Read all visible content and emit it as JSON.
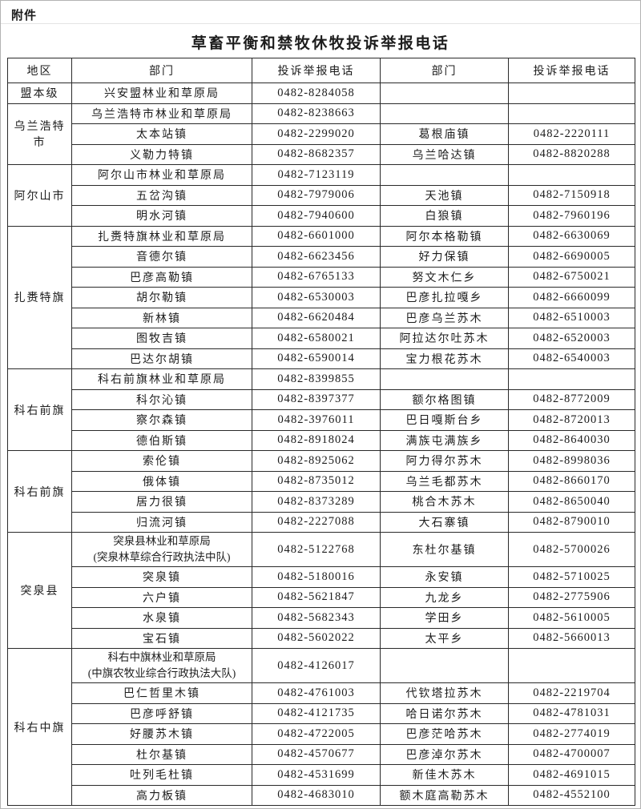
{
  "attachment_label": "附件",
  "title": "草畜平衡和禁牧休牧投诉举报电话",
  "colors": {
    "text": "#1c1c1c",
    "table_border": "#2a2a2a",
    "page_background": "#ffffff"
  },
  "table": {
    "columns": [
      "地区",
      "部门",
      "投诉举报电话",
      "部门",
      "投诉举报电话"
    ],
    "sections": [
      {
        "region": "盟本级",
        "rows": [
          [
            "兴安盟林业和草原局",
            "0482-8284058",
            "",
            ""
          ]
        ]
      },
      {
        "region": "乌兰浩特市",
        "rows": [
          [
            "乌兰浩特市林业和草原局",
            "0482-8238663",
            "",
            ""
          ],
          [
            "太本站镇",
            "0482-2299020",
            "葛根庙镇",
            "0482-2220111"
          ],
          [
            "义勒力特镇",
            "0482-8682357",
            "乌兰哈达镇",
            "0482-8820288"
          ]
        ]
      },
      {
        "region": "阿尔山市",
        "rows": [
          [
            "阿尔山市林业和草原局",
            "0482-7123119",
            "",
            ""
          ],
          [
            "五岔沟镇",
            "0482-7979006",
            "天池镇",
            "0482-7150918"
          ],
          [
            "明水河镇",
            "0482-7940600",
            "白狼镇",
            "0482-7960196"
          ]
        ]
      },
      {
        "region": "扎赉特旗",
        "rows": [
          [
            "扎赉特旗林业和草原局",
            "0482-6601000",
            "阿尔本格勒镇",
            "0482-6630069"
          ],
          [
            "音德尔镇",
            "0482-6623456",
            "好力保镇",
            "0482-6690005"
          ],
          [
            "巴彦高勒镇",
            "0482-6765133",
            "努文木仁乡",
            "0482-6750021"
          ],
          [
            "胡尔勒镇",
            "0482-6530003",
            "巴彦扎拉嘎乡",
            "0482-6660099"
          ],
          [
            "新林镇",
            "0482-6620484",
            "巴彦乌兰苏木",
            "0482-6510003"
          ],
          [
            "图牧吉镇",
            "0482-6580021",
            "阿拉达尔吐苏木",
            "0482-6520003"
          ],
          [
            "巴达尔胡镇",
            "0482-6590014",
            "宝力根花苏木",
            "0482-6540003"
          ]
        ]
      },
      {
        "region": "科右前旗",
        "rows": [
          [
            "科右前旗林业和草原局",
            "0482-8399855",
            "",
            ""
          ],
          [
            "科尔沁镇",
            "0482-8397377",
            "额尔格图镇",
            "0482-8772009"
          ],
          [
            "察尔森镇",
            "0482-3976011",
            "巴日嘎斯台乡",
            "0482-8720013"
          ],
          [
            "德伯斯镇",
            "0482-8918024",
            "满族屯满族乡",
            "0482-8640030"
          ]
        ]
      },
      {
        "region": "科右前旗",
        "rows": [
          [
            "索伦镇",
            "0482-8925062",
            "阿力得尔苏木",
            "0482-8998036"
          ],
          [
            "俄体镇",
            "0482-8735012",
            "乌兰毛都苏木",
            "0482-8660170"
          ],
          [
            "居力很镇",
            "0482-8373289",
            "桃合木苏木",
            "0482-8650040"
          ],
          [
            "归流河镇",
            "0482-2227088",
            "大石寨镇",
            "0482-8790010"
          ]
        ]
      },
      {
        "region": "突泉县",
        "rows": [
          [
            "突泉县林业和草原局\n(突泉林草综合行政执法中队)",
            "0482-5122768",
            "东杜尔基镇",
            "0482-5700026"
          ],
          [
            "突泉镇",
            "0482-5180016",
            "永安镇",
            "0482-5710025"
          ],
          [
            "六户镇",
            "0482-5621847",
            "九龙乡",
            "0482-2775906"
          ],
          [
            "水泉镇",
            "0482-5682343",
            "学田乡",
            "0482-5610005"
          ],
          [
            "宝石镇",
            "0482-5602022",
            "太平乡",
            "0482-5660013"
          ]
        ]
      },
      {
        "region": "科右中旗",
        "rows": [
          [
            "科右中旗林业和草原局\n(中旗农牧业综合行政执法大队)",
            "0482-4126017",
            "",
            ""
          ],
          [
            "巴仁哲里木镇",
            "0482-4761003",
            "代钦塔拉苏木",
            "0482-2219704"
          ],
          [
            "巴彦呼舒镇",
            "0482-4121735",
            "哈日诺尔苏木",
            "0482-4781031"
          ],
          [
            "好腰苏木镇",
            "0482-4722005",
            "巴彦茫哈苏木",
            "0482-2774019"
          ],
          [
            "杜尔基镇",
            "0482-4570677",
            "巴彦淖尔苏木",
            "0482-4700007"
          ],
          [
            "吐列毛杜镇",
            "0482-4531699",
            "新佳木苏木",
            "0482-4691015"
          ],
          [
            "高力板镇",
            "0482-4683010",
            "额木庭高勒苏木",
            "0482-4552100"
          ]
        ]
      }
    ]
  }
}
